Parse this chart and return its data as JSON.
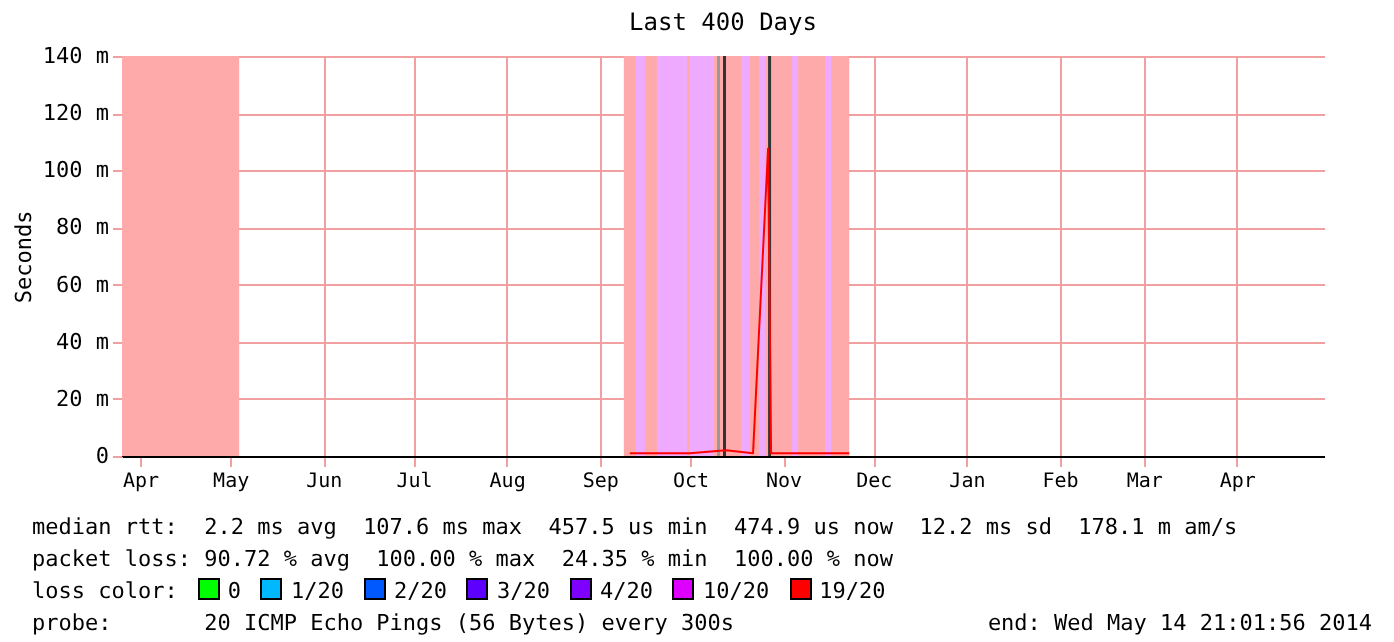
{
  "chart_data": {
    "type": "line",
    "title": "Last 400 Days",
    "ylabel": "Seconds",
    "x": [
      "2013-09-25",
      "2013-10-05",
      "2013-10-15",
      "2013-10-27",
      "2013-11-05",
      "2013-11-10",
      "2013-11-11",
      "2013-11-20",
      "2013-12-01",
      "2013-12-07"
    ],
    "series": [
      {
        "color": "#ff0000",
        "values": [
          1,
          1,
          1,
          2,
          1,
          107.6,
          1,
          1,
          1,
          1
        ]
      }
    ],
    "bands": [
      {
        "axis": "x",
        "from": "2013-04-09",
        "to": "2013-05-18",
        "color": "#ffaaaa"
      },
      {
        "axis": "x",
        "from": "2013-09-23",
        "to": "2013-12-07",
        "color": "#ffaaaa"
      },
      {
        "axis": "x",
        "from": "2013-09-27",
        "to": "2013-09-30",
        "color": "#eeaaff"
      },
      {
        "axis": "x",
        "from": "2013-10-04",
        "to": "2013-10-14",
        "color": "#eeaaff"
      },
      {
        "axis": "x",
        "from": "2013-10-15",
        "to": "2013-10-23",
        "color": "#eeaaff"
      },
      {
        "axis": "x",
        "from": "2013-11-01",
        "to": "2013-11-04",
        "color": "#eeaaff"
      },
      {
        "axis": "x",
        "from": "2013-11-07",
        "to": "2013-11-09",
        "color": "#eeaaff"
      },
      {
        "axis": "x",
        "from": "2013-11-18",
        "to": "2013-11-20",
        "color": "#eeaaff"
      },
      {
        "axis": "x",
        "from": "2013-11-29",
        "to": "2013-12-01",
        "color": "#eeaaff"
      },
      {
        "axis": "x",
        "from": "2013-10-24",
        "to": "2013-10-25",
        "color": "#999999"
      },
      {
        "axis": "x",
        "from": "2013-10-26",
        "to": "2013-10-27",
        "color": "#333333"
      },
      {
        "axis": "x",
        "from": "2013-11-10",
        "to": "2013-11-11",
        "color": "#333333"
      }
    ],
    "xlim": [
      "2013-04-09",
      "2014-05-14"
    ],
    "xticks": [
      {
        "value": "2013-04-15",
        "label": "Apr"
      },
      {
        "value": "2013-05-15",
        "label": "May"
      },
      {
        "value": "2013-06-15",
        "label": "Jun"
      },
      {
        "value": "2013-07-15",
        "label": "Jul"
      },
      {
        "value": "2013-08-15",
        "label": "Aug"
      },
      {
        "value": "2013-09-15",
        "label": "Sep"
      },
      {
        "value": "2013-10-15",
        "label": "Oct"
      },
      {
        "value": "2013-11-15",
        "label": "Nov"
      },
      {
        "value": "2013-12-15",
        "label": "Dec"
      },
      {
        "value": "2014-01-15",
        "label": "Jan"
      },
      {
        "value": "2014-02-15",
        "label": "Feb"
      },
      {
        "value": "2014-03-15",
        "label": "Mar"
      },
      {
        "value": "2014-04-15",
        "label": "Apr"
      }
    ],
    "ylim": [
      0,
      140
    ],
    "yticks": [
      0,
      {
        "value": 20,
        "label": "20 m"
      },
      {
        "value": 40,
        "label": "40 m"
      },
      {
        "value": 60,
        "label": "60 m"
      },
      {
        "value": 80,
        "label": "80 m"
      },
      {
        "value": 100,
        "label": "100 m"
      },
      {
        "value": 120,
        "label": "120 m"
      },
      {
        "value": 140,
        "label": "140 m"
      }
    ],
    "grid": true,
    "annotations": [
      "median rtt:  2.2 ms avg  107.6 ms max  457.5 us min  474.9 us now  12.2 ms sd  178.1 m am/s",
      "packet loss: 90.72 % avg  100.00 % max  24.35 % min  100.00 % now",
      "loss color:",
      "0",
      "1/20",
      "2/20",
      "3/20",
      "4/20",
      "10/20",
      "19/20",
      "probe:       20 ICMP Echo Pings (56 Bytes) every 300s",
      "end: Wed May 14 21:01:56 2014"
    ]
  }
}
